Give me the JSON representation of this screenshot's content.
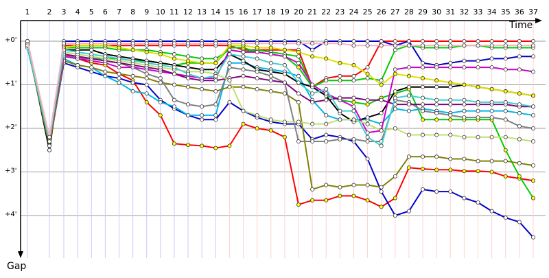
{
  "chart_data": {
    "type": "line",
    "x_axis_title": "Time",
    "y_axis_title": "Gap",
    "laps": [
      "1",
      "2",
      "3",
      "4",
      "5",
      "6",
      "7",
      "8",
      "9",
      "10",
      "11",
      "12",
      "13",
      "14",
      "15",
      "16",
      "17",
      "18",
      "19",
      "20",
      "21",
      "22",
      "23",
      "24",
      "25",
      "26",
      "27",
      "28",
      "29",
      "30",
      "31",
      "32",
      "33",
      "34",
      "35",
      "36",
      "37"
    ],
    "gap_ticks": [
      "+0'",
      "+1'",
      "+2'",
      "+3'",
      "+4'"
    ],
    "gap_tick_values": [
      0,
      1,
      2,
      3,
      4
    ],
    "y_range": [
      0,
      4.8
    ],
    "grid": true,
    "series": [
      {
        "color": "#ff0000",
        "marker": "#ffff00",
        "values": [
          0.1,
          2.2,
          0.3,
          0.4,
          0.5,
          0.55,
          0.75,
          0.9,
          1.4,
          1.7,
          2.35,
          2.38,
          2.4,
          2.45,
          2.4,
          1.9,
          2.0,
          2.05,
          2.2,
          3.75,
          3.65,
          3.65,
          3.55,
          3.55,
          3.65,
          3.8,
          3.6,
          2.9,
          2.93,
          2.95,
          2.95,
          2.98,
          2.98,
          3.0,
          3.1,
          3.15,
          3.2
        ]
      },
      {
        "color": "#ff0000",
        "marker": "#ffffff",
        "values": [
          0.0,
          2.35,
          0.1,
          0.1,
          0.1,
          0.1,
          0.1,
          0.1,
          0.1,
          0.1,
          0.1,
          0.1,
          0.1,
          0.1,
          0.1,
          0.2,
          0.2,
          0.2,
          0.2,
          0.2,
          1.05,
          0.85,
          0.8,
          0.8,
          0.6,
          0.0,
          0.0,
          0.0,
          0.0,
          0.0,
          0.0,
          0.0,
          0.0,
          0.0,
          0.0,
          0.0,
          0.0
        ]
      },
      {
        "color": "#0000cc",
        "marker": "#ffffff",
        "values": [
          0.0,
          2.5,
          0.0,
          0.0,
          0.0,
          0.0,
          0.0,
          0.0,
          0.0,
          0.0,
          0.0,
          0.0,
          0.0,
          0.0,
          0.0,
          0.0,
          0.0,
          0.0,
          0.0,
          0.0,
          0.2,
          0.0,
          0.0,
          0.0,
          0.0,
          0.0,
          0.1,
          0.0,
          0.5,
          0.55,
          0.5,
          0.45,
          0.45,
          0.4,
          0.4,
          0.35,
          0.35
        ]
      },
      {
        "color": "#0000cc",
        "marker": "#ffffff",
        "values": [
          0.1,
          2.4,
          0.5,
          0.6,
          0.7,
          0.8,
          0.85,
          0.95,
          1.0,
          1.35,
          1.55,
          1.7,
          1.8,
          1.8,
          1.4,
          1.6,
          1.75,
          1.85,
          1.9,
          1.9,
          2.25,
          2.15,
          2.2,
          2.3,
          2.7,
          3.45,
          4.0,
          3.9,
          3.4,
          3.45,
          3.45,
          3.6,
          3.7,
          3.9,
          4.05,
          4.15,
          4.5
        ]
      },
      {
        "color": "#00cc00",
        "marker": "#ffffff",
        "values": [
          0.0,
          2.25,
          0.15,
          0.15,
          0.15,
          0.15,
          0.2,
          0.2,
          0.2,
          0.25,
          0.3,
          0.35,
          0.4,
          0.4,
          0.2,
          0.25,
          0.2,
          0.25,
          0.3,
          0.35,
          1.05,
          0.9,
          0.9,
          0.9,
          0.85,
          0.9,
          0.2,
          0.1,
          0.15,
          0.15,
          0.15,
          0.1,
          0.1,
          0.15,
          0.15,
          0.15,
          0.15
        ]
      },
      {
        "color": "#00cc00",
        "marker": "#ffff00",
        "values": [
          0.1,
          2.3,
          0.3,
          0.35,
          0.4,
          0.4,
          0.4,
          0.45,
          0.45,
          0.5,
          0.55,
          0.5,
          0.5,
          0.5,
          0.15,
          0.15,
          0.25,
          0.3,
          0.35,
          0.6,
          1.05,
          1.25,
          1.35,
          1.4,
          1.45,
          1.3,
          1.2,
          1.1,
          1.8,
          1.8,
          1.8,
          1.8,
          1.8,
          1.8,
          2.5,
          3.1,
          3.6
        ]
      },
      {
        "color": "#00b7eb",
        "marker": "#ffffff",
        "values": [
          0.15,
          2.3,
          0.4,
          0.55,
          0.6,
          0.8,
          0.95,
          1.15,
          1.2,
          1.4,
          1.5,
          1.7,
          1.7,
          1.7,
          0.5,
          0.5,
          0.6,
          0.65,
          0.7,
          0.8,
          1.35,
          1.7,
          1.8,
          1.8,
          1.8,
          1.9,
          1.55,
          1.6,
          1.55,
          1.6,
          1.65,
          1.6,
          1.6,
          1.6,
          1.6,
          1.65,
          1.7
        ]
      },
      {
        "color": "#000000",
        "marker": "#ffffff",
        "values": [
          0.05,
          2.5,
          0.2,
          0.2,
          0.2,
          0.3,
          0.35,
          0.4,
          0.45,
          0.5,
          0.55,
          0.6,
          0.65,
          0.65,
          0.3,
          0.45,
          0.65,
          0.7,
          0.75,
          0.95,
          1.05,
          1.25,
          1.65,
          1.85,
          1.75,
          1.65,
          1.15,
          1.05,
          1.05,
          1.05,
          1.05,
          1.0,
          1.05,
          1.1,
          1.15,
          1.2,
          1.25
        ]
      },
      {
        "color": "#808000",
        "marker": "#ffffff",
        "values": [
          0.1,
          2.4,
          0.45,
          0.55,
          0.6,
          0.7,
          0.75,
          0.8,
          0.85,
          0.95,
          1.0,
          1.05,
          1.1,
          1.15,
          1.05,
          1.05,
          1.1,
          1.15,
          1.2,
          1.4,
          3.4,
          3.3,
          3.35,
          3.3,
          3.3,
          3.35,
          3.1,
          2.65,
          2.65,
          2.65,
          2.7,
          2.7,
          2.75,
          2.75,
          2.75,
          2.8,
          2.85
        ]
      },
      {
        "color": "#808080",
        "marker": "#ffffff",
        "values": [
          0.1,
          2.3,
          0.3,
          0.4,
          0.4,
          0.45,
          0.5,
          0.6,
          0.75,
          0.85,
          1.35,
          1.45,
          1.5,
          1.45,
          0.6,
          0.65,
          0.7,
          0.8,
          0.95,
          2.3,
          2.3,
          2.3,
          2.25,
          2.25,
          2.3,
          2.3,
          1.35,
          1.4,
          1.6,
          1.65,
          1.7,
          1.75,
          1.75,
          1.75,
          1.8,
          1.95,
          2.0
        ]
      },
      {
        "color": "#cc00cc",
        "marker": "#ffffff",
        "values": [
          0.05,
          2.3,
          0.35,
          0.4,
          0.45,
          0.5,
          0.6,
          0.6,
          0.65,
          0.7,
          0.75,
          0.8,
          0.85,
          0.85,
          0.2,
          0.25,
          0.25,
          0.3,
          0.35,
          0.5,
          1.0,
          1.2,
          1.35,
          1.5,
          2.1,
          2.05,
          0.65,
          0.6,
          0.6,
          0.6,
          0.6,
          0.6,
          0.6,
          0.6,
          0.65,
          0.65,
          0.7
        ]
      },
      {
        "color": "#800080",
        "marker": "#ffffff",
        "values": [
          0.05,
          2.3,
          0.3,
          0.35,
          0.4,
          0.45,
          0.5,
          0.55,
          0.6,
          0.65,
          0.75,
          0.85,
          0.9,
          0.9,
          0.85,
          0.8,
          0.85,
          0.9,
          0.95,
          1.2,
          1.4,
          1.35,
          1.3,
          1.3,
          1.35,
          1.35,
          1.45,
          1.45,
          1.45,
          1.45,
          1.45,
          1.45,
          1.45,
          1.45,
          1.45,
          1.5,
          1.5
        ]
      },
      {
        "color": "#c0e070",
        "marker": "#ffffff",
        "values": [
          0.1,
          2.25,
          0.25,
          0.3,
          0.35,
          0.4,
          0.45,
          0.5,
          0.55,
          0.6,
          0.65,
          0.7,
          0.7,
          0.75,
          0.9,
          1.6,
          1.7,
          1.8,
          1.85,
          1.85,
          1.9,
          1.9,
          1.8,
          1.8,
          1.9,
          2.05,
          2.0,
          2.15,
          2.15,
          2.15,
          2.15,
          2.2,
          2.2,
          2.2,
          2.2,
          2.25,
          2.3
        ]
      },
      {
        "color": "#e0e000",
        "marker": "#ffff00",
        "values": [
          0.0,
          2.25,
          0.15,
          0.1,
          0.1,
          0.1,
          0.15,
          0.2,
          0.25,
          0.3,
          0.4,
          0.45,
          0.5,
          0.5,
          0.1,
          0.1,
          0.15,
          0.15,
          0.2,
          0.25,
          0.35,
          0.4,
          0.5,
          0.55,
          0.75,
          1.0,
          0.75,
          0.8,
          0.85,
          0.9,
          0.95,
          1.0,
          1.05,
          1.1,
          1.15,
          1.2,
          1.25
        ]
      },
      {
        "color": "#40d0d0",
        "marker": "#ffffff",
        "values": [
          0.1,
          2.3,
          0.2,
          0.25,
          0.3,
          0.35,
          0.4,
          0.45,
          0.5,
          0.55,
          0.6,
          0.75,
          0.85,
          0.8,
          0.3,
          0.35,
          0.4,
          0.5,
          0.55,
          0.95,
          1.2,
          1.1,
          1.6,
          1.6,
          2.2,
          2.4,
          1.3,
          1.25,
          1.3,
          1.35,
          1.35,
          1.35,
          1.4,
          1.4,
          1.4,
          1.45,
          1.5
        ]
      },
      {
        "color": "#ffb0c0",
        "marker": "#ffffff",
        "values": [
          0.0,
          2.2,
          0.05,
          0.05,
          0.05,
          0.05,
          0.05,
          0.05,
          0.05,
          0.05,
          0.05,
          0.05,
          0.05,
          0.05,
          0.05,
          0.05,
          0.05,
          0.05,
          0.05,
          0.05,
          0.05,
          0.05,
          0.05,
          0.1,
          0.1,
          0.1,
          0.1,
          0.1,
          0.1,
          0.1,
          0.1,
          0.1,
          0.1,
          0.1,
          0.1,
          0.1,
          0.1
        ]
      }
    ]
  }
}
